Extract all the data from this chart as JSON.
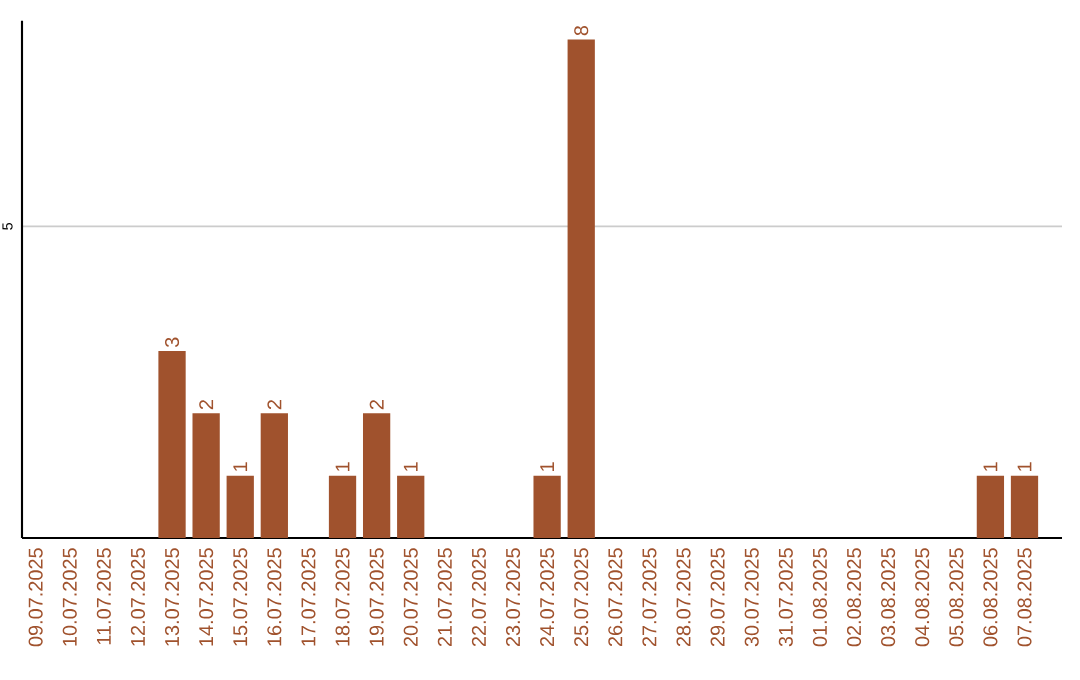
{
  "chart_data": {
    "type": "bar",
    "categories": [
      "09.07.2025",
      "10.07.2025",
      "11.07.2025",
      "12.07.2025",
      "13.07.2025",
      "14.07.2025",
      "15.07.2025",
      "16.07.2025",
      "17.07.2025",
      "18.07.2025",
      "19.07.2025",
      "20.07.2025",
      "21.07.2025",
      "22.07.2025",
      "23.07.2025",
      "24.07.2025",
      "25.07.2025",
      "26.07.2025",
      "27.07.2025",
      "28.07.2025",
      "29.07.2025",
      "30.07.2025",
      "31.07.2025",
      "01.08.2025",
      "02.08.2025",
      "03.08.2025",
      "04.08.2025",
      "05.08.2025",
      "06.08.2025",
      "07.08.2025"
    ],
    "values": [
      0,
      0,
      0,
      0,
      3,
      2,
      1,
      2,
      0,
      1,
      2,
      1,
      0,
      0,
      0,
      1,
      8,
      0,
      0,
      0,
      0,
      0,
      0,
      0,
      0,
      0,
      0,
      0,
      1,
      1
    ],
    "value_labels": [
      null,
      null,
      null,
      null,
      "3",
      "2",
      "1",
      "2",
      null,
      "1",
      "2",
      "1",
      null,
      null,
      null,
      "1",
      "8",
      null,
      null,
      null,
      null,
      null,
      null,
      null,
      null,
      null,
      null,
      null,
      "1",
      "1"
    ],
    "color": "#a0522d",
    "ylim": [
      0,
      8.3
    ],
    "yticks": [
      5
    ],
    "grid": "y"
  }
}
